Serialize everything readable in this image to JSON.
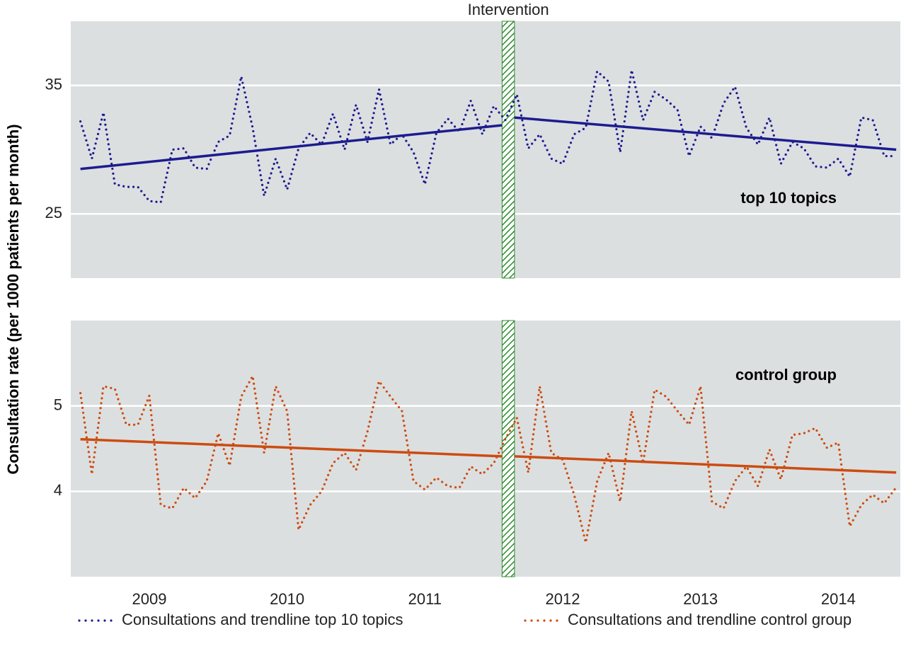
{
  "y_label": "Consultation rate (per 1000 patients per month)",
  "intervention": {
    "label": "Intervention",
    "xlim": [
      2012.06,
      2012.15
    ]
  },
  "chart_data": [
    {
      "type": "line",
      "annotation": "top 10 topics",
      "x": [
        2009,
        2009.083,
        2009.167,
        2009.25,
        2009.333,
        2009.417,
        2009.5,
        2009.583,
        2009.667,
        2009.75,
        2009.833,
        2009.917,
        2010,
        2010.083,
        2010.167,
        2010.25,
        2010.333,
        2010.417,
        2010.5,
        2010.583,
        2010.667,
        2010.75,
        2010.833,
        2010.917,
        2011,
        2011.083,
        2011.167,
        2011.25,
        2011.333,
        2011.417,
        2011.5,
        2011.583,
        2011.667,
        2011.75,
        2011.833,
        2011.917,
        2012,
        2012.083,
        2012.167,
        2012.25,
        2012.333,
        2012.417,
        2012.5,
        2012.583,
        2012.667,
        2012.75,
        2012.833,
        2012.917,
        2013,
        2013.083,
        2013.167,
        2013.25,
        2013.333,
        2013.417,
        2013.5,
        2013.583,
        2013.667,
        2013.75,
        2013.833,
        2013.917,
        2014,
        2014.083,
        2014.167,
        2014.25,
        2014.333,
        2014.417,
        2014.5,
        2014.583,
        2014.667,
        2014.75,
        2014.833,
        2014.917
      ],
      "series": [
        {
          "name": "Consultations and trendline top 10 topics",
          "color": "#1c1c8f",
          "values": [
            32.2,
            29.3,
            32.9,
            27.3,
            27.1,
            27.1,
            26.0,
            25.9,
            30.0,
            30.1,
            28.6,
            28.5,
            30.6,
            31.1,
            35.7,
            31.7,
            26.4,
            29.3,
            26.9,
            30.1,
            31.3,
            30.4,
            32.8,
            30.0,
            33.5,
            30.6,
            34.7,
            30.4,
            31.2,
            29.8,
            27.3,
            31.3,
            32.4,
            31.4,
            33.8,
            31.2,
            33.4,
            32.3,
            34.3,
            30.1,
            31.2,
            29.3,
            28.9,
            31.2,
            31.7,
            36.1,
            35.3,
            29.8,
            36.2,
            32.3,
            34.5,
            33.9,
            33.1,
            29.5,
            31.8,
            30.9,
            33.6,
            34.9,
            31.7,
            30.4,
            32.5,
            28.9,
            30.6,
            30.1,
            28.7,
            28.6,
            29.3,
            27.9,
            32.5,
            32.3,
            29.5,
            29.5
          ]
        }
      ],
      "trend": [
        {
          "x": [
            2009,
            2012.06
          ],
          "values": [
            28.5,
            31.9
          ]
        },
        {
          "x": [
            2012.15,
            2014.92
          ],
          "values": [
            32.5,
            30.0
          ]
        }
      ],
      "xlim": [
        2008.93,
        2014.95
      ],
      "ylim": [
        20,
        40
      ],
      "yticks": [
        25,
        35
      ],
      "grid": true
    },
    {
      "type": "line",
      "annotation": "control group",
      "x": [
        2009,
        2009.083,
        2009.167,
        2009.25,
        2009.333,
        2009.417,
        2009.5,
        2009.583,
        2009.667,
        2009.75,
        2009.833,
        2009.917,
        2010,
        2010.083,
        2010.167,
        2010.25,
        2010.333,
        2010.417,
        2010.5,
        2010.583,
        2010.667,
        2010.75,
        2010.833,
        2010.917,
        2011,
        2011.083,
        2011.167,
        2011.25,
        2011.333,
        2011.417,
        2011.5,
        2011.583,
        2011.667,
        2011.75,
        2011.833,
        2011.917,
        2012,
        2012.083,
        2012.167,
        2012.25,
        2012.333,
        2012.417,
        2012.5,
        2012.583,
        2012.667,
        2012.75,
        2012.833,
        2012.917,
        2013,
        2013.083,
        2013.167,
        2013.25,
        2013.333,
        2013.417,
        2013.5,
        2013.583,
        2013.667,
        2013.75,
        2013.833,
        2013.917,
        2014,
        2014.083,
        2014.167,
        2014.25,
        2014.333,
        2014.417,
        2014.5,
        2014.583,
        2014.667,
        2014.75,
        2014.833,
        2014.917
      ],
      "series": [
        {
          "name": "Consultations and trendline control group",
          "color": "#cc4c10",
          "values": [
            5.15,
            4.2,
            5.23,
            5.2,
            4.78,
            4.78,
            5.12,
            3.84,
            3.8,
            4.04,
            3.92,
            4.12,
            4.68,
            4.3,
            5.11,
            5.35,
            4.45,
            5.23,
            4.94,
            3.55,
            3.84,
            4.0,
            4.33,
            4.45,
            4.25,
            4.7,
            5.29,
            5.11,
            4.94,
            4.12,
            4.02,
            4.16,
            4.06,
            4.04,
            4.29,
            4.2,
            4.33,
            4.61,
            4.86,
            4.22,
            5.23,
            4.45,
            4.37,
            3.96,
            3.4,
            4.12,
            4.45,
            3.88,
            4.94,
            4.33,
            5.19,
            5.11,
            4.94,
            4.78,
            5.23,
            3.88,
            3.8,
            4.12,
            4.29,
            4.06,
            4.49,
            4.14,
            4.66,
            4.68,
            4.74,
            4.51,
            4.57,
            3.59,
            3.84,
            3.96,
            3.86,
            4.04
          ]
        }
      ],
      "trend": [
        {
          "x": [
            2009,
            2012.06
          ],
          "values": [
            4.61,
            4.41
          ]
        },
        {
          "x": [
            2012.15,
            2014.92
          ],
          "values": [
            4.41,
            4.22
          ]
        }
      ],
      "xlim": [
        2008.93,
        2014.95
      ],
      "ylim": [
        3,
        6
      ],
      "yticks": [
        4,
        5
      ],
      "grid": true,
      "xticks": [
        {
          "value": 2009.5,
          "label": "2009"
        },
        {
          "value": 2010.5,
          "label": "2010"
        },
        {
          "value": 2011.5,
          "label": "2011"
        },
        {
          "value": 2012.5,
          "label": "2012"
        },
        {
          "value": 2013.5,
          "label": "2013"
        },
        {
          "value": 2014.5,
          "label": "2014"
        }
      ]
    }
  ]
}
